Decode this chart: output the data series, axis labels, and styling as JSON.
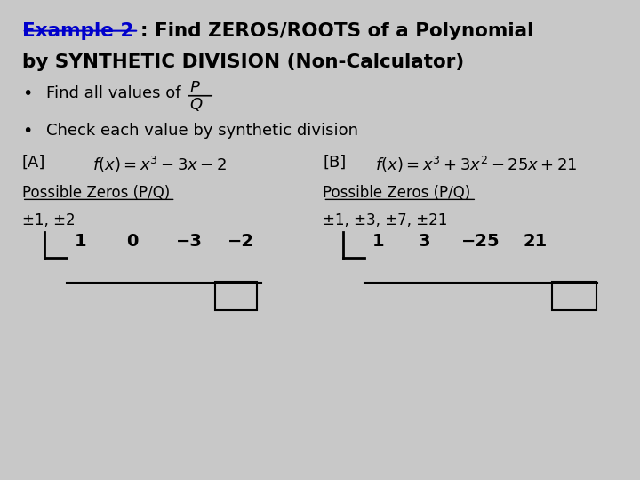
{
  "background_color": "#c8c8c8",
  "title_color": "#0000cc",
  "text_color": "#000000",
  "title_ex": "Example 2",
  "title_rest1": ": Find ZEROS/ROOTS of a Polynomial",
  "title_rest2": "by SYNTHETIC DIVISION (Non-Calculator)",
  "bullet1": "Find all values of",
  "fraction_num": "P",
  "fraction_den": "Q",
  "bullet2": "Check each value by synthetic division",
  "label_A": "[A]",
  "label_B": "[B]",
  "poss_zeros_label": "Possible Zeros (P/Q)",
  "zeros_A": "±1, ±2",
  "zeros_B": "±1, ±3, ±7, ±21",
  "coeffs_A": [
    "1",
    "0",
    "−3",
    "−2"
  ],
  "coeffs_B": [
    "1",
    "3",
    "−25",
    "21"
  ]
}
